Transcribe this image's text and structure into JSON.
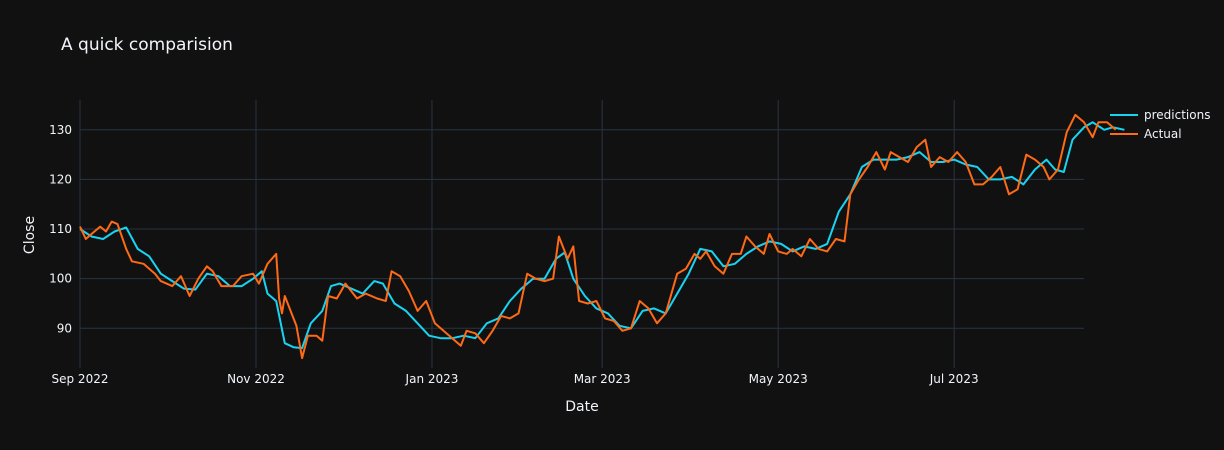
{
  "chart_data": {
    "type": "line",
    "title": "A quick comparision",
    "xlabel": "Date",
    "ylabel": "Close",
    "x_range": [
      "2022-09-01",
      "2023-08-15"
    ],
    "ylim": [
      82,
      136
    ],
    "grid": true,
    "legend_placement": "top-right",
    "x_ticks": [
      {
        "date": "2022-09-01",
        "label": "Sep 2022"
      },
      {
        "date": "2022-11-01",
        "label": "Nov 2022"
      },
      {
        "date": "2023-01-01",
        "label": "Jan 2023"
      },
      {
        "date": "2023-03-01",
        "label": "Mar 2023"
      },
      {
        "date": "2023-05-01",
        "label": "May 2023"
      },
      {
        "date": "2023-07-01",
        "label": "Jul 2023"
      }
    ],
    "y_ticks": [
      90,
      100,
      110,
      120,
      130
    ],
    "series": [
      {
        "name": "predictions",
        "color": "#19d3f3",
        "points": [
          [
            "2022-09-01",
            110.0
          ],
          [
            "2022-09-05",
            108.5
          ],
          [
            "2022-09-09",
            108.0
          ],
          [
            "2022-09-13",
            109.5
          ],
          [
            "2022-09-17",
            110.3
          ],
          [
            "2022-09-21",
            106.0
          ],
          [
            "2022-09-25",
            104.5
          ],
          [
            "2022-09-29",
            101.0
          ],
          [
            "2022-10-03",
            99.5
          ],
          [
            "2022-10-07",
            98.0
          ],
          [
            "2022-10-11",
            97.8
          ],
          [
            "2022-10-15",
            101.0
          ],
          [
            "2022-10-19",
            100.5
          ],
          [
            "2022-10-23",
            98.5
          ],
          [
            "2022-10-27",
            98.5
          ],
          [
            "2022-10-31",
            100.0
          ],
          [
            "2022-11-03",
            101.5
          ],
          [
            "2022-11-05",
            97.0
          ],
          [
            "2022-11-08",
            95.5
          ],
          [
            "2022-11-11",
            87.0
          ],
          [
            "2022-11-14",
            86.2
          ],
          [
            "2022-11-17",
            86.0
          ],
          [
            "2022-11-20",
            91.0
          ],
          [
            "2022-11-24",
            93.5
          ],
          [
            "2022-11-27",
            98.5
          ],
          [
            "2022-11-30",
            99.0
          ],
          [
            "2022-12-04",
            98.0
          ],
          [
            "2022-12-08",
            97.0
          ],
          [
            "2022-12-12",
            99.5
          ],
          [
            "2022-12-15",
            99.0
          ],
          [
            "2022-12-19",
            95.0
          ],
          [
            "2022-12-23",
            93.5
          ],
          [
            "2022-12-27",
            91.0
          ],
          [
            "2022-12-31",
            88.5
          ],
          [
            "2023-01-04",
            88.0
          ],
          [
            "2023-01-08",
            88.0
          ],
          [
            "2023-01-12",
            88.5
          ],
          [
            "2023-01-16",
            88.0
          ],
          [
            "2023-01-20",
            91.0
          ],
          [
            "2023-01-24",
            92.0
          ],
          [
            "2023-01-28",
            95.5
          ],
          [
            "2023-02-01",
            98.0
          ],
          [
            "2023-02-05",
            100.0
          ],
          [
            "2023-02-09",
            100.0
          ],
          [
            "2023-02-13",
            104.0
          ],
          [
            "2023-02-16",
            105.3
          ],
          [
            "2023-02-19",
            100.0
          ],
          [
            "2023-02-23",
            96.5
          ],
          [
            "2023-02-27",
            94.0
          ],
          [
            "2023-03-03",
            93.0
          ],
          [
            "2023-03-07",
            90.5
          ],
          [
            "2023-03-11",
            90.0
          ],
          [
            "2023-03-15",
            93.5
          ],
          [
            "2023-03-19",
            94.0
          ],
          [
            "2023-03-23",
            93.0
          ],
          [
            "2023-03-27",
            97.0
          ],
          [
            "2023-03-31",
            101.0
          ],
          [
            "2023-04-04",
            106.0
          ],
          [
            "2023-04-08",
            105.5
          ],
          [
            "2023-04-12",
            102.5
          ],
          [
            "2023-04-16",
            103.0
          ],
          [
            "2023-04-20",
            105.0
          ],
          [
            "2023-04-24",
            106.5
          ],
          [
            "2023-04-28",
            107.5
          ],
          [
            "2023-05-02",
            107.0
          ],
          [
            "2023-05-06",
            105.5
          ],
          [
            "2023-05-10",
            106.5
          ],
          [
            "2023-05-14",
            106.0
          ],
          [
            "2023-05-18",
            107.0
          ],
          [
            "2023-05-22",
            113.5
          ],
          [
            "2023-05-26",
            117.0
          ],
          [
            "2023-05-30",
            122.5
          ],
          [
            "2023-06-03",
            124.0
          ],
          [
            "2023-06-07",
            124.0
          ],
          [
            "2023-06-11",
            124.0
          ],
          [
            "2023-06-15",
            124.5
          ],
          [
            "2023-06-19",
            125.5
          ],
          [
            "2023-06-23",
            123.5
          ],
          [
            "2023-06-27",
            123.5
          ],
          [
            "2023-07-01",
            124.0
          ],
          [
            "2023-07-05",
            123.0
          ],
          [
            "2023-07-09",
            122.5
          ],
          [
            "2023-07-13",
            120.0
          ],
          [
            "2023-07-17",
            120.0
          ],
          [
            "2023-07-21",
            120.5
          ],
          [
            "2023-07-25",
            119.0
          ],
          [
            "2023-07-29",
            122.0
          ],
          [
            "2023-08-02",
            124.0
          ],
          [
            "2023-08-05",
            122.0
          ],
          [
            "2023-08-08",
            121.5
          ],
          [
            "2023-08-11",
            128.0
          ],
          [
            "2023-08-15",
            130.5
          ],
          [
            "2023-08-18",
            131.5
          ],
          [
            "2023-08-22",
            130.0
          ],
          [
            "2023-08-25",
            130.5
          ],
          [
            "2023-08-29",
            130.0
          ]
        ]
      },
      {
        "name": "Actual",
        "color": "#fe6a16",
        "points": [
          [
            "2022-09-01",
            110.5
          ],
          [
            "2022-09-03",
            108.0
          ],
          [
            "2022-09-05",
            109.0
          ],
          [
            "2022-09-08",
            110.5
          ],
          [
            "2022-09-10",
            109.5
          ],
          [
            "2022-09-12",
            111.5
          ],
          [
            "2022-09-14",
            111.0
          ],
          [
            "2022-09-17",
            106.0
          ],
          [
            "2022-09-19",
            103.5
          ],
          [
            "2022-09-23",
            103.0
          ],
          [
            "2022-09-27",
            101.0
          ],
          [
            "2022-09-29",
            99.5
          ],
          [
            "2022-10-03",
            98.5
          ],
          [
            "2022-10-06",
            100.5
          ],
          [
            "2022-10-09",
            96.5
          ],
          [
            "2022-10-12",
            100.0
          ],
          [
            "2022-10-15",
            102.5
          ],
          [
            "2022-10-17",
            101.5
          ],
          [
            "2022-10-20",
            98.5
          ],
          [
            "2022-10-24",
            98.5
          ],
          [
            "2022-10-27",
            100.5
          ],
          [
            "2022-10-31",
            101.0
          ],
          [
            "2022-11-02",
            99.0
          ],
          [
            "2022-11-05",
            103.0
          ],
          [
            "2022-11-08",
            105.0
          ],
          [
            "2022-11-09",
            96.0
          ],
          [
            "2022-11-10",
            93.0
          ],
          [
            "2022-11-11",
            96.5
          ],
          [
            "2022-11-15",
            90.5
          ],
          [
            "2022-11-17",
            84.0
          ],
          [
            "2022-11-19",
            88.5
          ],
          [
            "2022-11-22",
            88.5
          ],
          [
            "2022-11-24",
            87.5
          ],
          [
            "2022-11-26",
            96.5
          ],
          [
            "2022-11-29",
            96.0
          ],
          [
            "2022-12-02",
            99.0
          ],
          [
            "2022-12-06",
            96.0
          ],
          [
            "2022-12-09",
            97.0
          ],
          [
            "2022-12-13",
            96.0
          ],
          [
            "2022-12-16",
            95.5
          ],
          [
            "2022-12-18",
            101.5
          ],
          [
            "2022-12-21",
            100.5
          ],
          [
            "2022-12-24",
            97.5
          ],
          [
            "2022-12-27",
            93.5
          ],
          [
            "2022-12-30",
            95.5
          ],
          [
            "2023-01-02",
            91.0
          ],
          [
            "2023-01-05",
            89.5
          ],
          [
            "2023-01-08",
            88.0
          ],
          [
            "2023-01-11",
            86.5
          ],
          [
            "2023-01-13",
            89.5
          ],
          [
            "2023-01-16",
            89.0
          ],
          [
            "2023-01-19",
            87.0
          ],
          [
            "2023-01-22",
            89.5
          ],
          [
            "2023-01-25",
            92.5
          ],
          [
            "2023-01-28",
            92.0
          ],
          [
            "2023-01-31",
            93.0
          ],
          [
            "2023-02-03",
            101.0
          ],
          [
            "2023-02-06",
            100.0
          ],
          [
            "2023-02-09",
            99.5
          ],
          [
            "2023-02-12",
            100.0
          ],
          [
            "2023-02-14",
            108.5
          ],
          [
            "2023-02-17",
            104.0
          ],
          [
            "2023-02-19",
            106.5
          ],
          [
            "2023-02-21",
            95.5
          ],
          [
            "2023-02-24",
            95.0
          ],
          [
            "2023-02-27",
            95.5
          ],
          [
            "2023-03-02",
            92.0
          ],
          [
            "2023-03-05",
            91.5
          ],
          [
            "2023-03-08",
            89.5
          ],
          [
            "2023-03-11",
            90.0
          ],
          [
            "2023-03-14",
            95.5
          ],
          [
            "2023-03-17",
            94.0
          ],
          [
            "2023-03-20",
            91.0
          ],
          [
            "2023-03-23",
            93.0
          ],
          [
            "2023-03-27",
            101.0
          ],
          [
            "2023-03-30",
            102.0
          ],
          [
            "2023-04-02",
            105.0
          ],
          [
            "2023-04-04",
            104.0
          ],
          [
            "2023-04-06",
            105.5
          ],
          [
            "2023-04-09",
            102.5
          ],
          [
            "2023-04-12",
            101.0
          ],
          [
            "2023-04-15",
            105.0
          ],
          [
            "2023-04-18",
            105.0
          ],
          [
            "2023-04-20",
            108.5
          ],
          [
            "2023-04-23",
            106.5
          ],
          [
            "2023-04-26",
            105.0
          ],
          [
            "2023-04-28",
            109.0
          ],
          [
            "2023-05-01",
            105.5
          ],
          [
            "2023-05-04",
            105.0
          ],
          [
            "2023-05-06",
            106.0
          ],
          [
            "2023-05-09",
            104.5
          ],
          [
            "2023-05-12",
            108.0
          ],
          [
            "2023-05-15",
            106.0
          ],
          [
            "2023-05-18",
            105.5
          ],
          [
            "2023-05-21",
            108.0
          ],
          [
            "2023-05-24",
            107.5
          ],
          [
            "2023-05-26",
            117.0
          ],
          [
            "2023-05-29",
            120.0
          ],
          [
            "2023-06-01",
            122.5
          ],
          [
            "2023-06-04",
            125.5
          ],
          [
            "2023-06-07",
            122.0
          ],
          [
            "2023-06-09",
            125.5
          ],
          [
            "2023-06-12",
            124.5
          ],
          [
            "2023-06-15",
            123.5
          ],
          [
            "2023-06-18",
            126.5
          ],
          [
            "2023-06-21",
            128.0
          ],
          [
            "2023-06-23",
            122.5
          ],
          [
            "2023-06-26",
            124.5
          ],
          [
            "2023-06-29",
            123.5
          ],
          [
            "2023-07-02",
            125.5
          ],
          [
            "2023-07-05",
            123.5
          ],
          [
            "2023-07-08",
            119.0
          ],
          [
            "2023-07-11",
            119.0
          ],
          [
            "2023-07-14",
            120.5
          ],
          [
            "2023-07-17",
            122.5
          ],
          [
            "2023-07-20",
            117.0
          ],
          [
            "2023-07-23",
            118.0
          ],
          [
            "2023-07-26",
            125.0
          ],
          [
            "2023-07-29",
            124.0
          ],
          [
            "2023-08-01",
            122.5
          ],
          [
            "2023-08-03",
            120.0
          ],
          [
            "2023-08-06",
            122.0
          ],
          [
            "2023-08-09",
            129.5
          ],
          [
            "2023-08-12",
            133.0
          ],
          [
            "2023-08-15",
            131.5
          ],
          [
            "2023-08-18",
            128.5
          ],
          [
            "2023-08-20",
            131.5
          ],
          [
            "2023-08-23",
            131.5
          ],
          [
            "2023-08-26",
            130.0
          ]
        ]
      }
    ]
  }
}
